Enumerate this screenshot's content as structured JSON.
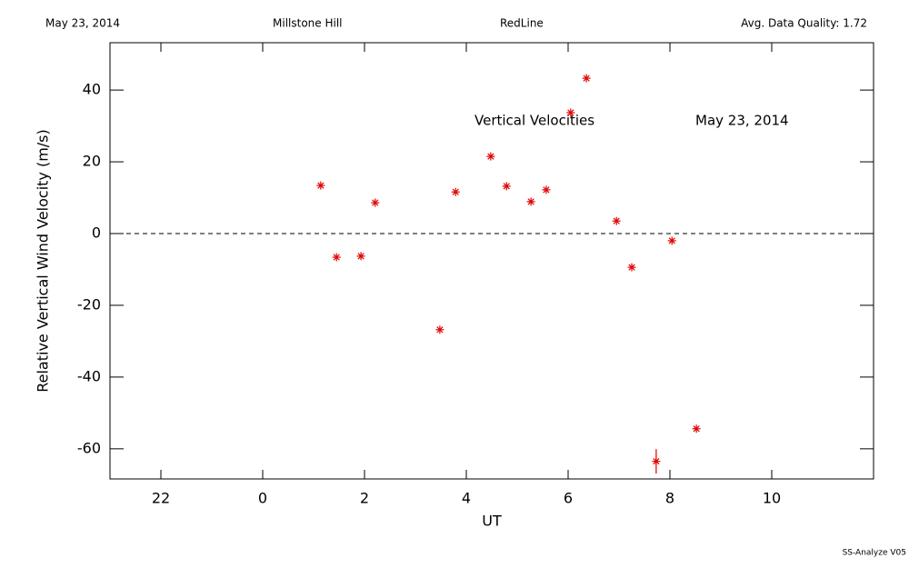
{
  "chart_data": {
    "type": "scatter",
    "header": {
      "date": "May 23, 2014",
      "site": "Millstone Hill",
      "instrument": "RedLine",
      "quality": "Avg. Data Quality: 1.72"
    },
    "annotations": [
      "Vertical Velocities",
      "May 23, 2014"
    ],
    "footer": "SS-Analyze V05",
    "x_label": "UT",
    "y_label": "Relative Vertical Wind Velocity (m/s)",
    "color": "#e00000",
    "x": [
      1.14,
      1.45,
      1.93,
      2.21,
      3.48,
      3.79,
      4.48,
      4.79,
      5.27,
      5.57,
      6.05,
      6.36,
      6.95,
      7.25,
      7.73,
      8.04,
      8.52
    ],
    "values": [
      13.4,
      -6.6,
      -6.3,
      8.6,
      -26.8,
      11.6,
      21.5,
      13.2,
      8.9,
      12.2,
      33.7,
      43.3,
      3.5,
      -9.4,
      -63.5,
      -2.0,
      -54.4
    ],
    "errors": [
      null,
      null,
      null,
      null,
      null,
      null,
      null,
      null,
      null,
      null,
      null,
      null,
      null,
      null,
      3.4,
      null,
      null
    ],
    "reference_line": 0,
    "xlim": [
      -3,
      12
    ],
    "xticks": [
      {
        "value": -2,
        "label": "22"
      },
      0,
      2,
      4,
      6,
      8,
      10
    ],
    "ylim": [
      -68.4,
      53.2
    ],
    "yticks": [
      -60,
      -40,
      -20,
      0,
      20,
      40
    ]
  }
}
